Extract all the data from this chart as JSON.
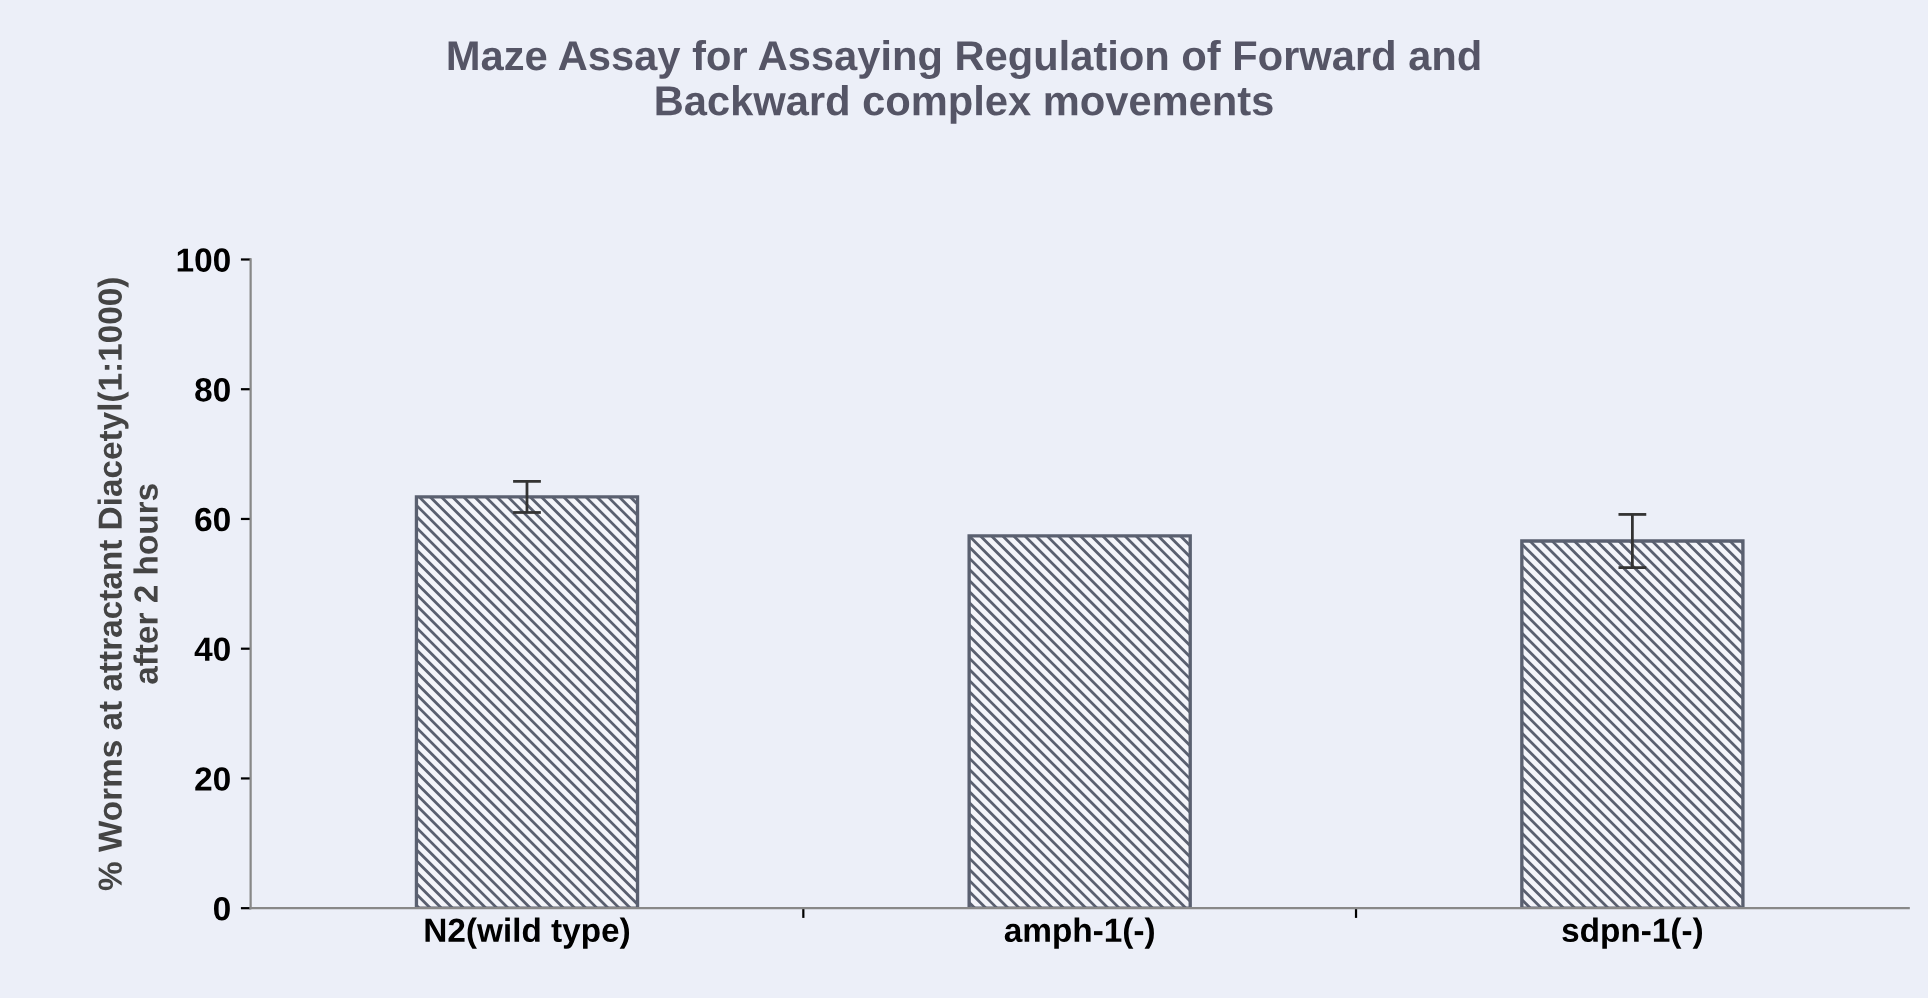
{
  "chart_data": {
    "type": "bar",
    "title": "Maze Assay for Assaying Regulation of Forward and\nBackward complex movements",
    "ylabel": "% Worms at attractant Diacetyl(1:1000)\nafter 2 hours",
    "categories": [
      "N2(wild type)",
      "amph-1(-)",
      "sdpn-1(-)"
    ],
    "values": [
      63.4,
      57.4,
      56.6
    ],
    "errors": [
      2.4,
      null,
      4.1
    ],
    "color": "#5a6070",
    "ylim": [
      0,
      100
    ],
    "yticks": [
      0,
      20,
      40,
      60,
      80,
      100
    ],
    "grid": false
  }
}
